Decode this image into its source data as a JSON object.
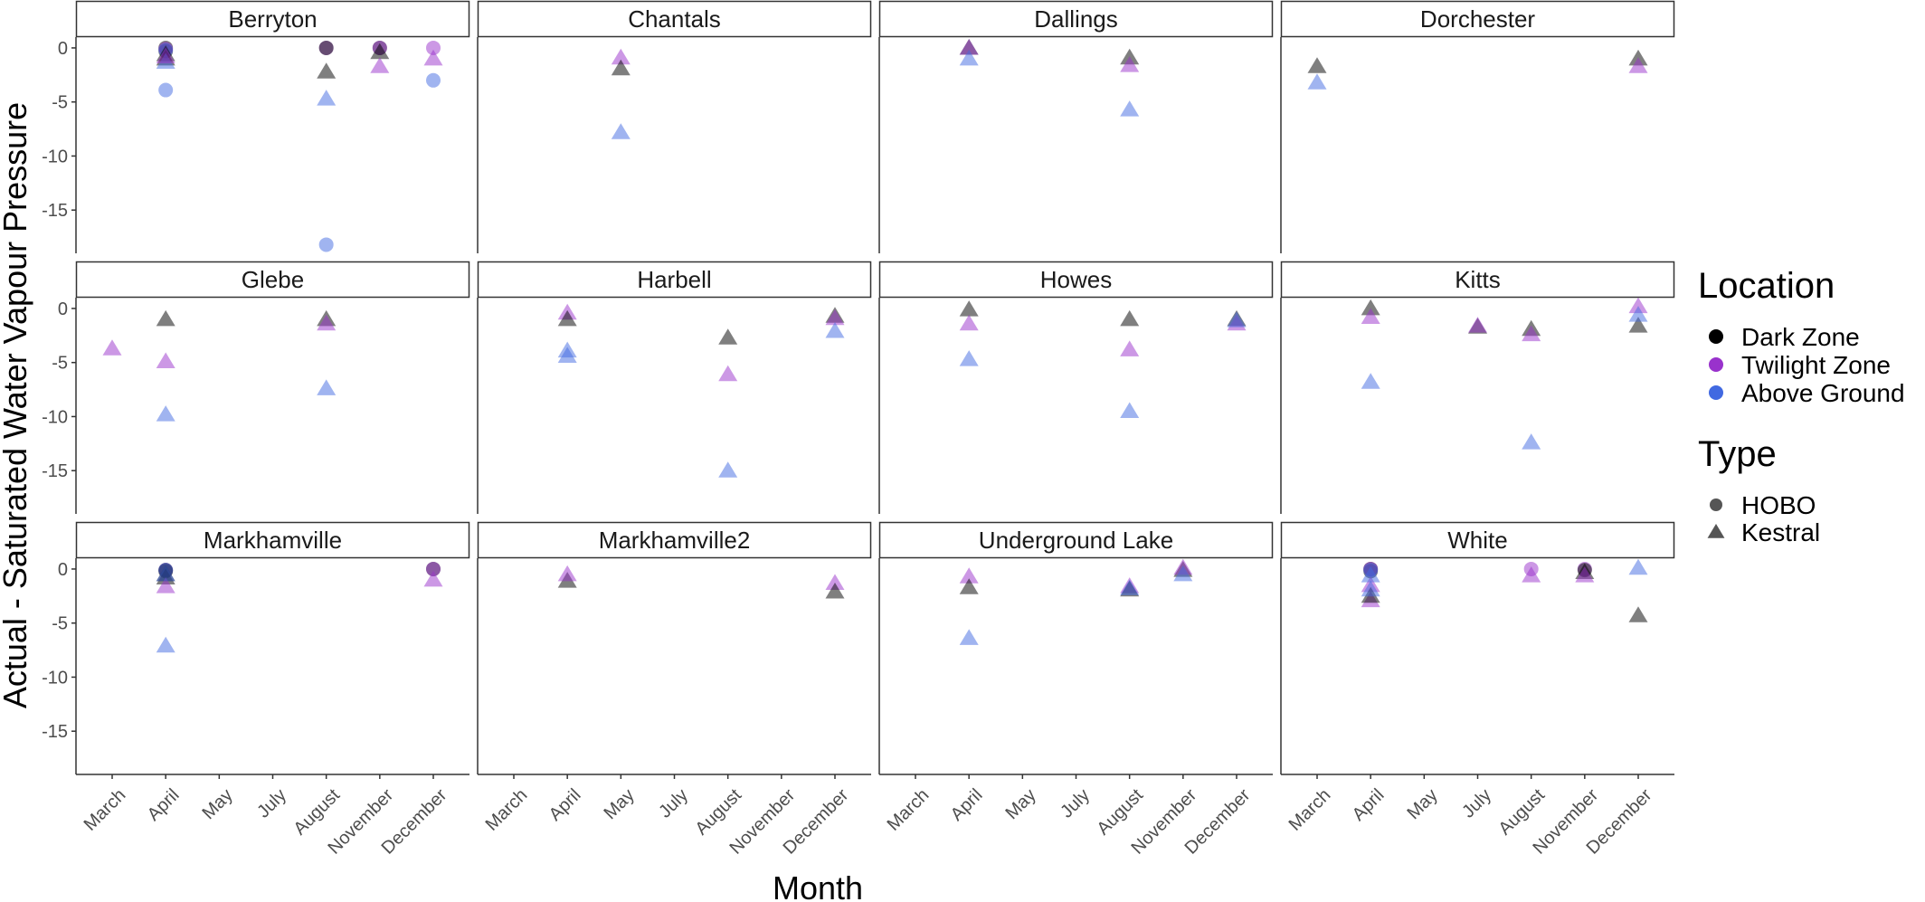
{
  "chart_data": {
    "type": "scatter",
    "facet_layout": "3x4",
    "xlabel": "Month",
    "ylabel": "Actual - Saturated Water Vapour Pressure",
    "x_categories": [
      "March",
      "April",
      "May",
      "July",
      "August",
      "November",
      "December"
    ],
    "y_ticks": [
      0,
      -5,
      -10,
      -15
    ],
    "ylim": [
      -19,
      1
    ],
    "grid": false,
    "legend_placement": "right",
    "legend": {
      "location_title": "Location",
      "location_items": [
        {
          "label": "Dark Zone",
          "color": "#000000"
        },
        {
          "label": "Twilight Zone",
          "color": "#9932CC"
        },
        {
          "label": "Above Ground",
          "color": "#4169E1"
        }
      ],
      "type_title": "Type",
      "type_items": [
        {
          "label": "HOBO",
          "shape": "circle"
        },
        {
          "label": "Kestral",
          "shape": "triangle"
        }
      ]
    },
    "point_alpha": 0.5,
    "panels": [
      {
        "name": "Berryton",
        "points": [
          {
            "month": "April",
            "location": "Dark Zone",
            "type": "HOBO",
            "y": 0.0
          },
          {
            "month": "April",
            "location": "Dark Zone",
            "type": "HOBO",
            "y": -0.3
          },
          {
            "month": "April",
            "location": "Twilight Zone",
            "type": "HOBO",
            "y": -0.1
          },
          {
            "month": "April",
            "location": "Above Ground",
            "type": "HOBO",
            "y": -0.2
          },
          {
            "month": "April",
            "location": "Above Ground",
            "type": "HOBO",
            "y": -3.9
          },
          {
            "month": "April",
            "location": "Dark Zone",
            "type": "Kestral",
            "y": -0.6
          },
          {
            "month": "April",
            "location": "Dark Zone",
            "type": "Kestral",
            "y": -1.0
          },
          {
            "month": "April",
            "location": "Above Ground",
            "type": "Kestral",
            "y": -1.3
          },
          {
            "month": "April",
            "location": "Twilight Zone",
            "type": "Kestral",
            "y": -0.8
          },
          {
            "month": "August",
            "location": "Twilight Zone",
            "type": "HOBO",
            "y": 0.0
          },
          {
            "month": "August",
            "location": "Dark Zone",
            "type": "HOBO",
            "y": 0.0
          },
          {
            "month": "August",
            "location": "Dark Zone",
            "type": "Kestral",
            "y": -2.2
          },
          {
            "month": "August",
            "location": "Above Ground",
            "type": "Kestral",
            "y": -4.7
          },
          {
            "month": "August",
            "location": "Above Ground",
            "type": "HOBO",
            "y": -18.2
          },
          {
            "month": "November",
            "location": "Dark Zone",
            "type": "HOBO",
            "y": 0.0
          },
          {
            "month": "November",
            "location": "Twilight Zone",
            "type": "HOBO",
            "y": 0.0
          },
          {
            "month": "November",
            "location": "Dark Zone",
            "type": "Kestral",
            "y": -0.4
          },
          {
            "month": "November",
            "location": "Twilight Zone",
            "type": "Kestral",
            "y": -1.7
          },
          {
            "month": "December",
            "location": "Above Ground",
            "type": "HOBO",
            "y": -3.0
          },
          {
            "month": "December",
            "location": "Twilight Zone",
            "type": "HOBO",
            "y": 0.0
          },
          {
            "month": "December",
            "location": "Twilight Zone",
            "type": "Kestral",
            "y": -1.0
          }
        ]
      },
      {
        "name": "Chantals",
        "points": [
          {
            "month": "May",
            "location": "Twilight Zone",
            "type": "Kestral",
            "y": -0.9
          },
          {
            "month": "May",
            "location": "Dark Zone",
            "type": "Kestral",
            "y": -1.9
          },
          {
            "month": "May",
            "location": "Above Ground",
            "type": "Kestral",
            "y": -7.8
          }
        ]
      },
      {
        "name": "Dallings",
        "points": [
          {
            "month": "April",
            "location": "Dark Zone",
            "type": "Kestral",
            "y": 0.0
          },
          {
            "month": "April",
            "location": "Twilight Zone",
            "type": "Kestral",
            "y": 0.0
          },
          {
            "month": "April",
            "location": "Above Ground",
            "type": "Kestral",
            "y": -1.0
          },
          {
            "month": "August",
            "location": "Dark Zone",
            "type": "Kestral",
            "y": -0.9
          },
          {
            "month": "August",
            "location": "Twilight Zone",
            "type": "Kestral",
            "y": -1.6
          },
          {
            "month": "August",
            "location": "Above Ground",
            "type": "Kestral",
            "y": -5.7
          }
        ]
      },
      {
        "name": "Dorchester",
        "points": [
          {
            "month": "March",
            "location": "Dark Zone",
            "type": "Kestral",
            "y": -1.7
          },
          {
            "month": "March",
            "location": "Above Ground",
            "type": "Kestral",
            "y": -3.2
          },
          {
            "month": "December",
            "location": "Dark Zone",
            "type": "Kestral",
            "y": -1.0
          },
          {
            "month": "December",
            "location": "Twilight Zone",
            "type": "Kestral",
            "y": -1.7
          }
        ]
      },
      {
        "name": "Glebe",
        "points": [
          {
            "month": "March",
            "location": "Twilight Zone",
            "type": "Kestral",
            "y": -3.7
          },
          {
            "month": "April",
            "location": "Dark Zone",
            "type": "Kestral",
            "y": -1.0
          },
          {
            "month": "April",
            "location": "Twilight Zone",
            "type": "Kestral",
            "y": -4.9
          },
          {
            "month": "April",
            "location": "Above Ground",
            "type": "Kestral",
            "y": -9.8
          },
          {
            "month": "August",
            "location": "Dark Zone",
            "type": "Kestral",
            "y": -1.0
          },
          {
            "month": "August",
            "location": "Twilight Zone",
            "type": "Kestral",
            "y": -1.4
          },
          {
            "month": "August",
            "location": "Above Ground",
            "type": "Kestral",
            "y": -7.4
          }
        ]
      },
      {
        "name": "Harbell",
        "points": [
          {
            "month": "April",
            "location": "Twilight Zone",
            "type": "Kestral",
            "y": -0.4
          },
          {
            "month": "April",
            "location": "Dark Zone",
            "type": "Kestral",
            "y": -1.0
          },
          {
            "month": "April",
            "location": "Above Ground",
            "type": "Kestral",
            "y": -3.9
          },
          {
            "month": "April",
            "location": "Above Ground",
            "type": "Kestral",
            "y": -4.4
          },
          {
            "month": "August",
            "location": "Dark Zone",
            "type": "Kestral",
            "y": -2.7
          },
          {
            "month": "August",
            "location": "Twilight Zone",
            "type": "Kestral",
            "y": -6.1
          },
          {
            "month": "August",
            "location": "Above Ground",
            "type": "Kestral",
            "y": -15.0
          },
          {
            "month": "December",
            "location": "Dark Zone",
            "type": "Kestral",
            "y": -0.7
          },
          {
            "month": "December",
            "location": "Twilight Zone",
            "type": "Kestral",
            "y": -0.9
          },
          {
            "month": "December",
            "location": "Above Ground",
            "type": "Kestral",
            "y": -2.1
          }
        ]
      },
      {
        "name": "Howes",
        "points": [
          {
            "month": "April",
            "location": "Dark Zone",
            "type": "Kestral",
            "y": -0.1
          },
          {
            "month": "April",
            "location": "Twilight Zone",
            "type": "Kestral",
            "y": -1.4
          },
          {
            "month": "April",
            "location": "Above Ground",
            "type": "Kestral",
            "y": -4.7
          },
          {
            "month": "August",
            "location": "Dark Zone",
            "type": "Kestral",
            "y": -1.0
          },
          {
            "month": "August",
            "location": "Twilight Zone",
            "type": "Kestral",
            "y": -3.8
          },
          {
            "month": "August",
            "location": "Above Ground",
            "type": "Kestral",
            "y": -9.5
          },
          {
            "month": "December",
            "location": "Dark Zone",
            "type": "Kestral",
            "y": -1.0
          },
          {
            "month": "December",
            "location": "Twilight Zone",
            "type": "Kestral",
            "y": -1.4
          },
          {
            "month": "December",
            "location": "Above Ground",
            "type": "Kestral",
            "y": -1.1
          }
        ]
      },
      {
        "name": "Kitts",
        "points": [
          {
            "month": "April",
            "location": "Dark Zone",
            "type": "Kestral",
            "y": 0.0
          },
          {
            "month": "April",
            "location": "Twilight Zone",
            "type": "Kestral",
            "y": -0.8
          },
          {
            "month": "April",
            "location": "Above Ground",
            "type": "Kestral",
            "y": -6.8
          },
          {
            "month": "July",
            "location": "Dark Zone",
            "type": "Kestral",
            "y": -1.7
          },
          {
            "month": "July",
            "location": "Twilight Zone",
            "type": "Kestral",
            "y": -1.6
          },
          {
            "month": "August",
            "location": "Dark Zone",
            "type": "Kestral",
            "y": -1.9
          },
          {
            "month": "August",
            "location": "Twilight Zone",
            "type": "Kestral",
            "y": -2.4
          },
          {
            "month": "August",
            "location": "Above Ground",
            "type": "Kestral",
            "y": -12.4
          },
          {
            "month": "December",
            "location": "Twilight Zone",
            "type": "Kestral",
            "y": 0.2
          },
          {
            "month": "December",
            "location": "Dark Zone",
            "type": "Kestral",
            "y": -1.6
          },
          {
            "month": "December",
            "location": "Above Ground",
            "type": "Kestral",
            "y": -0.6
          }
        ]
      },
      {
        "name": "Markhamville",
        "points": [
          {
            "month": "April",
            "location": "Twilight Zone",
            "type": "HOBO",
            "y": -0.1
          },
          {
            "month": "April",
            "location": "Dark Zone",
            "type": "HOBO",
            "y": -0.1
          },
          {
            "month": "April",
            "location": "Dark Zone",
            "type": "HOBO",
            "y": -0.2
          },
          {
            "month": "April",
            "location": "Above Ground",
            "type": "HOBO",
            "y": -0.1
          },
          {
            "month": "April",
            "location": "Dark Zone",
            "type": "Kestral",
            "y": -0.5
          },
          {
            "month": "April",
            "location": "Dark Zone",
            "type": "Kestral",
            "y": -0.8
          },
          {
            "month": "April",
            "location": "Twilight Zone",
            "type": "Kestral",
            "y": -1.6
          },
          {
            "month": "April",
            "location": "Above Ground",
            "type": "Kestral",
            "y": -0.5
          },
          {
            "month": "April",
            "location": "Above Ground",
            "type": "Kestral",
            "y": -7.1
          },
          {
            "month": "December",
            "location": "Dark Zone",
            "type": "HOBO",
            "y": 0.0
          },
          {
            "month": "December",
            "location": "Twilight Zone",
            "type": "HOBO",
            "y": 0.0
          },
          {
            "month": "December",
            "location": "Twilight Zone",
            "type": "Kestral",
            "y": -1.0
          }
        ]
      },
      {
        "name": "Markhamville2",
        "points": [
          {
            "month": "April",
            "location": "Dark Zone",
            "type": "Kestral",
            "y": -1.1
          },
          {
            "month": "April",
            "location": "Twilight Zone",
            "type": "Kestral",
            "y": -0.5
          },
          {
            "month": "December",
            "location": "Twilight Zone",
            "type": "Kestral",
            "y": -1.3
          },
          {
            "month": "December",
            "location": "Dark Zone",
            "type": "Kestral",
            "y": -2.1
          }
        ]
      },
      {
        "name": "Underground Lake",
        "points": [
          {
            "month": "April",
            "location": "Twilight Zone",
            "type": "Kestral",
            "y": -0.7
          },
          {
            "month": "April",
            "location": "Dark Zone",
            "type": "Kestral",
            "y": -1.7
          },
          {
            "month": "April",
            "location": "Above Ground",
            "type": "Kestral",
            "y": -6.4
          },
          {
            "month": "August",
            "location": "Twilight Zone",
            "type": "Kestral",
            "y": -1.6
          },
          {
            "month": "August",
            "location": "Dark Zone",
            "type": "Kestral",
            "y": -1.9
          },
          {
            "month": "August",
            "location": "Above Ground",
            "type": "Kestral",
            "y": -1.8
          },
          {
            "month": "November",
            "location": "Dark Zone",
            "type": "Kestral",
            "y": -0.1
          },
          {
            "month": "November",
            "location": "Twilight Zone",
            "type": "Kestral",
            "y": 0.1
          },
          {
            "month": "November",
            "location": "Above Ground",
            "type": "Kestral",
            "y": -0.5
          }
        ]
      },
      {
        "name": "White",
        "points": [
          {
            "month": "April",
            "location": "Dark Zone",
            "type": "HOBO",
            "y": 0.0
          },
          {
            "month": "April",
            "location": "Dark Zone",
            "type": "HOBO",
            "y": -0.2
          },
          {
            "month": "April",
            "location": "Twilight Zone",
            "type": "HOBO",
            "y": 0.0
          },
          {
            "month": "April",
            "location": "Above Ground",
            "type": "HOBO",
            "y": -0.1
          },
          {
            "month": "April",
            "location": "Twilight Zone",
            "type": "Kestral",
            "y": -1.5
          },
          {
            "month": "April",
            "location": "Twilight Zone",
            "type": "Kestral",
            "y": -2.9
          },
          {
            "month": "April",
            "location": "Dark Zone",
            "type": "Kestral",
            "y": -2.5
          },
          {
            "month": "April",
            "location": "Above Ground",
            "type": "Kestral",
            "y": -0.6
          },
          {
            "month": "April",
            "location": "Above Ground",
            "type": "Kestral",
            "y": -1.9
          },
          {
            "month": "August",
            "location": "Twilight Zone",
            "type": "Kestral",
            "y": -0.6
          },
          {
            "month": "August",
            "location": "Twilight Zone",
            "type": "HOBO",
            "y": 0.0
          },
          {
            "month": "November",
            "location": "Twilight Zone",
            "type": "HOBO",
            "y": 0.0
          },
          {
            "month": "November",
            "location": "Dark Zone",
            "type": "HOBO",
            "y": -0.1
          },
          {
            "month": "November",
            "location": "Dark Zone",
            "type": "Kestral",
            "y": -0.3
          },
          {
            "month": "November",
            "location": "Twilight Zone",
            "type": "Kestral",
            "y": -0.6
          },
          {
            "month": "December",
            "location": "Dark Zone",
            "type": "Kestral",
            "y": -4.3
          },
          {
            "month": "December",
            "location": "Above Ground",
            "type": "Kestral",
            "y": 0.1
          }
        ]
      }
    ]
  }
}
